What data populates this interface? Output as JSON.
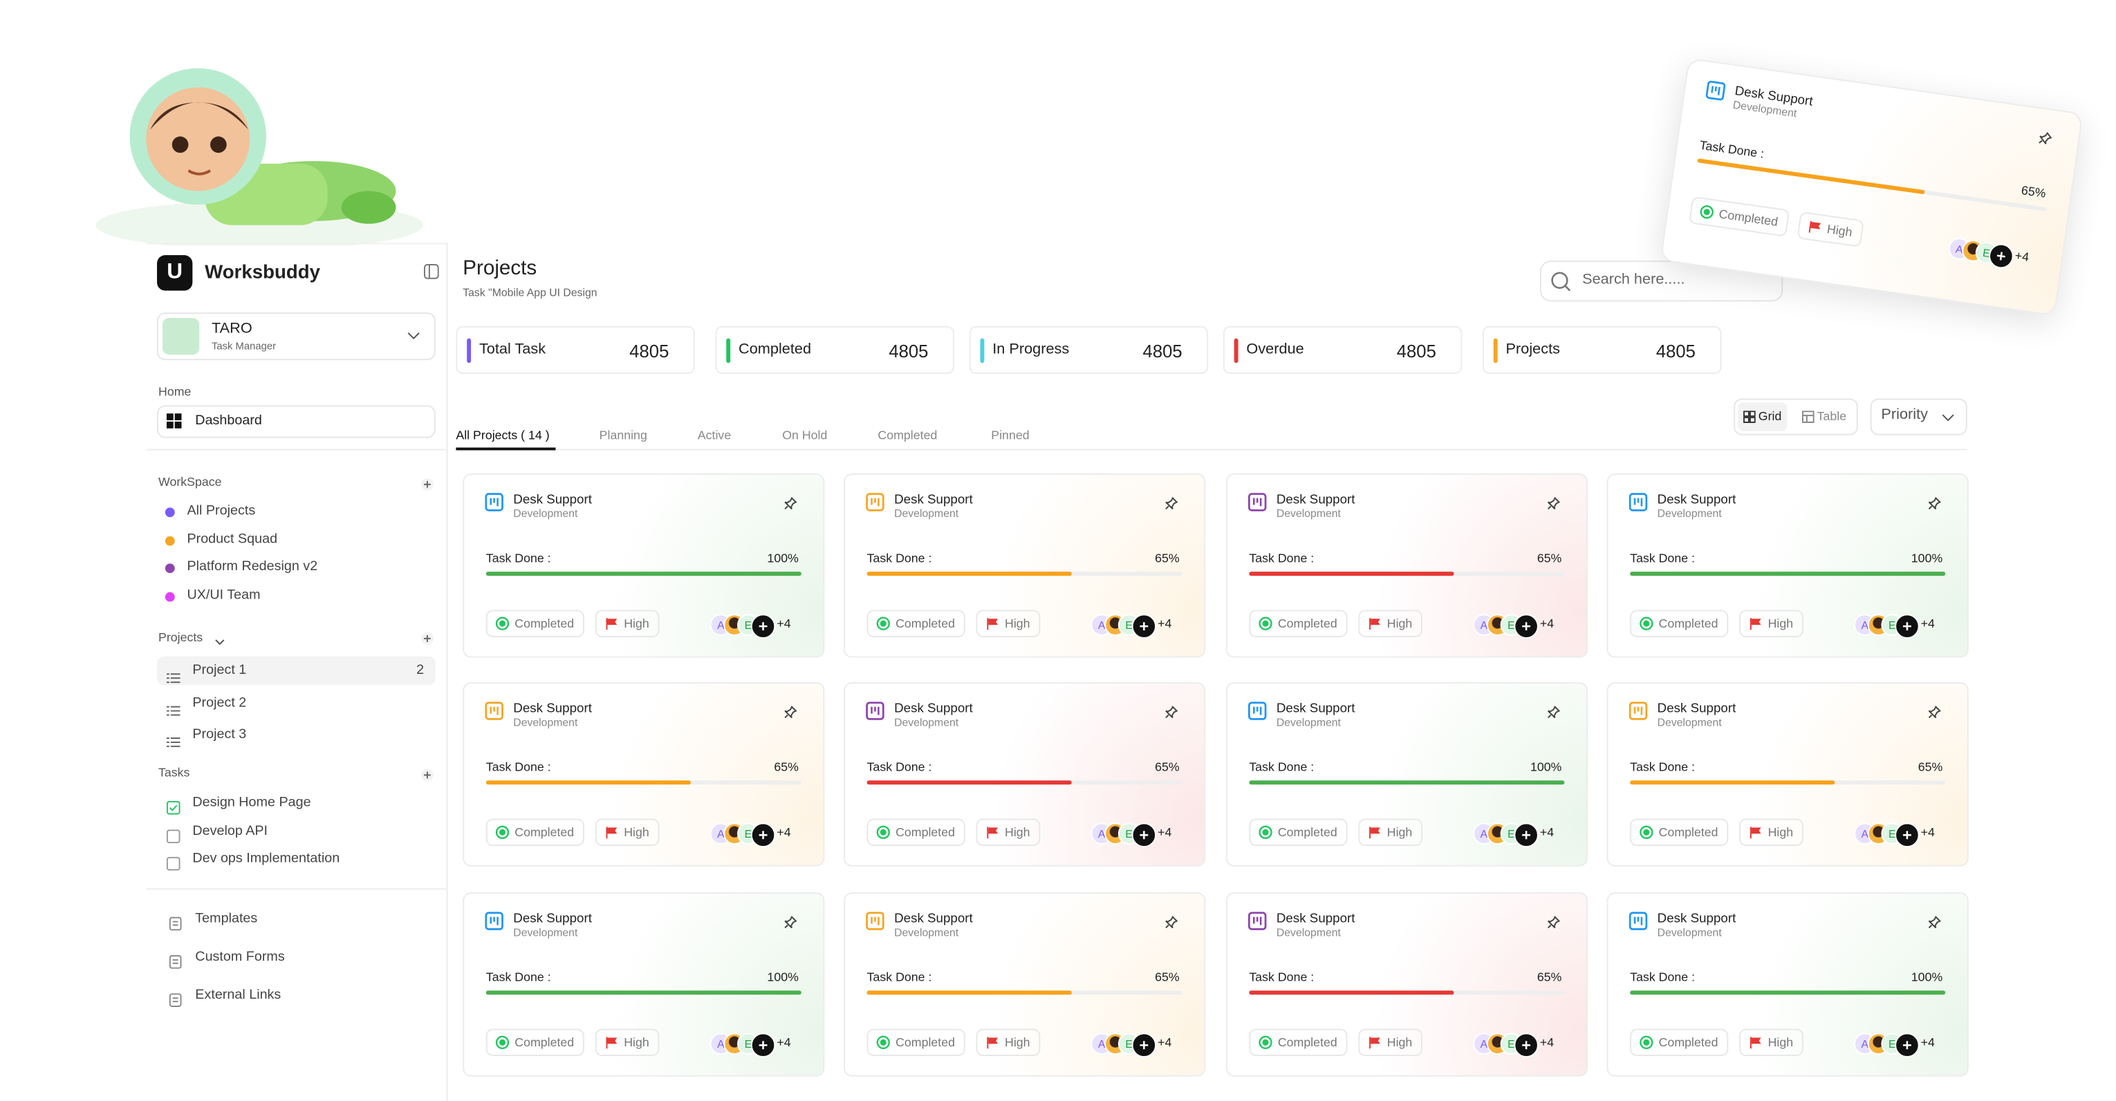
{
  "brand": "Worksbuddy",
  "user": {
    "name": "TARO",
    "role": "Task Manager"
  },
  "sidebar": {
    "home_label": "Home",
    "dashboard": "Dashboard",
    "workspace": {
      "title": "WorkSpace",
      "items": [
        {
          "label": "All Projects",
          "color": "#7a5af8"
        },
        {
          "label": "Product Squad",
          "color": "#f5a524"
        },
        {
          "label": "Platform Redesign v2",
          "color": "#8e44ad"
        },
        {
          "label": "UX/UI Team",
          "color": "#e040fb"
        }
      ]
    },
    "projects": {
      "title": "Projects",
      "items": [
        {
          "label": "Project 1",
          "count": 2
        },
        {
          "label": "Project 2"
        },
        {
          "label": "Project 3"
        }
      ]
    },
    "tasks": {
      "title": "Tasks",
      "items": [
        {
          "label": "Design Home Page",
          "done": true
        },
        {
          "label": "Develop API",
          "done": false
        },
        {
          "label": "Dev ops Implementation",
          "done": false
        }
      ]
    },
    "links": [
      "Templates",
      "Custom Forms",
      "External Links"
    ]
  },
  "header": {
    "title": "Projects",
    "subtitle": "Task \"Mobile App UI Design"
  },
  "search_placeholder": "Search here.....",
  "stats": [
    {
      "label": "Total Task",
      "value": 4805,
      "color": "#7a5af8"
    },
    {
      "label": "Completed",
      "value": 4805,
      "color": "#22c55e"
    },
    {
      "label": "In Progress",
      "value": 4805,
      "color": "#4dd0e1"
    },
    {
      "label": "Overdue",
      "value": 4805,
      "color": "#e53935"
    },
    {
      "label": "Projects",
      "value": 4805,
      "color": "#f5a524"
    }
  ],
  "view": {
    "grid": "Grid",
    "table": "Table",
    "sort": "Priority"
  },
  "tabs": [
    "All Projects ( 14 )",
    "Planning",
    "Active",
    "On Hold",
    "Completed",
    "Pinned"
  ],
  "cards": [
    {
      "title": "Desk Support",
      "subtitle": "Development",
      "color": "#2196f3",
      "task_label": "Task Done :",
      "progress": {
        "value": 100,
        "label": "100%"
      },
      "bar_color": "#4caf50",
      "status": "Completed",
      "priority": "High",
      "avatars": [
        "A",
        "E"
      ],
      "more": "+4"
    },
    {
      "title": "Desk Support",
      "subtitle": "Development",
      "color": "#f5a524",
      "task_label": "Task Done :",
      "progress": {
        "value": 65,
        "label": "65%"
      },
      "bar_color": "#f7a21b",
      "status": "Completed",
      "priority": "High",
      "avatars": [
        "A",
        "E"
      ],
      "more": "+4"
    },
    {
      "title": "Desk Support",
      "subtitle": "Development",
      "color": "#8e44ad",
      "task_label": "Task Done :",
      "progress": {
        "value": 65,
        "label": "65%"
      },
      "bar_color": "#e53935",
      "status": "Completed",
      "priority": "High",
      "avatars": [
        "A",
        "E"
      ],
      "more": "+4"
    },
    {
      "title": "Desk Support",
      "subtitle": "Development",
      "color": "#2196f3",
      "task_label": "Task Done :",
      "progress": {
        "value": 100,
        "label": "100%"
      },
      "bar_color": "#4caf50",
      "status": "Completed",
      "priority": "High",
      "avatars": [
        "A",
        "E"
      ],
      "more": "+4"
    },
    {
      "title": "Desk Support",
      "subtitle": "Development",
      "color": "#f5a524",
      "task_label": "Task Done :",
      "progress": {
        "value": 65,
        "label": "65%"
      },
      "bar_color": "#f7a21b",
      "status": "Completed",
      "priority": "High",
      "avatars": [
        "A",
        "E"
      ],
      "more": "+4"
    },
    {
      "title": "Desk Support",
      "subtitle": "Development",
      "color": "#8e44ad",
      "task_label": "Task Done :",
      "progress": {
        "value": 65,
        "label": "65%"
      },
      "bar_color": "#e53935",
      "status": "Completed",
      "priority": "High",
      "avatars": [
        "A",
        "E"
      ],
      "more": "+4"
    },
    {
      "title": "Desk Support",
      "subtitle": "Development",
      "color": "#2196f3",
      "task_label": "Task Done :",
      "progress": {
        "value": 100,
        "label": "100%"
      },
      "bar_color": "#4caf50",
      "status": "Completed",
      "priority": "High",
      "avatars": [
        "A",
        "E"
      ],
      "more": "+4"
    },
    {
      "title": "Desk Support",
      "subtitle": "Development",
      "color": "#f5a524",
      "task_label": "Task Done :",
      "progress": {
        "value": 65,
        "label": "65%"
      },
      "bar_color": "#f7a21b",
      "status": "Completed",
      "priority": "High",
      "avatars": [
        "A",
        "E"
      ],
      "more": "+4"
    },
    {
      "title": "Desk Support",
      "subtitle": "Development",
      "color": "#2196f3",
      "task_label": "Task Done :",
      "progress": {
        "value": 100,
        "label": "100%"
      },
      "bar_color": "#4caf50",
      "status": "Completed",
      "priority": "High",
      "avatars": [
        "A",
        "E"
      ],
      "more": "+4"
    },
    {
      "title": "Desk Support",
      "subtitle": "Development",
      "color": "#f5a524",
      "task_label": "Task Done :",
      "progress": {
        "value": 65,
        "label": "65%"
      },
      "bar_color": "#f7a21b",
      "status": "Completed",
      "priority": "High",
      "avatars": [
        "A",
        "E"
      ],
      "more": "+4"
    },
    {
      "title": "Desk Support",
      "subtitle": "Development",
      "color": "#8e44ad",
      "task_label": "Task Done :",
      "progress": {
        "value": 65,
        "label": "65%"
      },
      "bar_color": "#e53935",
      "status": "Completed",
      "priority": "High",
      "avatars": [
        "A",
        "E"
      ],
      "more": "+4"
    },
    {
      "title": "Desk Support",
      "subtitle": "Development",
      "color": "#2196f3",
      "task_label": "Task Done :",
      "progress": {
        "value": 100,
        "label": "100%"
      },
      "bar_color": "#4caf50",
      "status": "Completed",
      "priority": "High",
      "avatars": [
        "A",
        "E"
      ],
      "more": "+4"
    }
  ],
  "floating_card": {
    "title": "Desk Support",
    "subtitle": "Development",
    "color": "#2196f3",
    "task_label": "Task Done :",
    "progress": {
      "value": 65,
      "label": "65%"
    },
    "bar_color": "#f7a21b",
    "status": "Completed",
    "priority": "High",
    "avatars": [
      "A",
      "E"
    ],
    "more": "+4"
  }
}
